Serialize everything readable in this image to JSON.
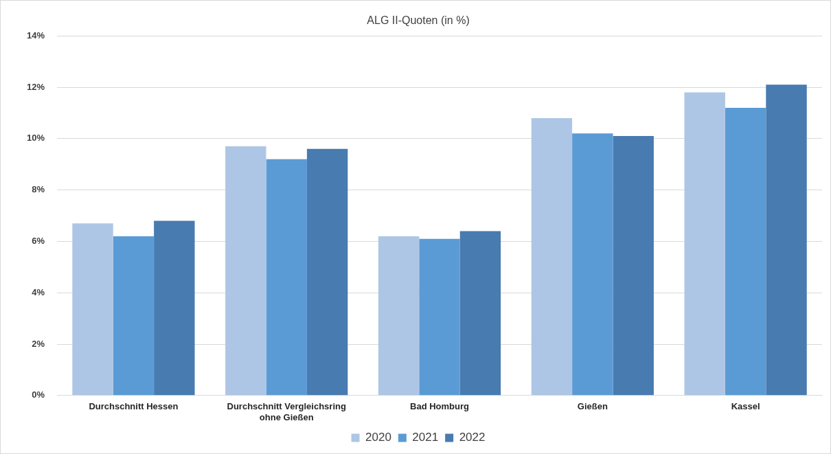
{
  "chart_data": {
    "type": "bar",
    "title": "ALG II-Quoten (in %)",
    "categories": [
      "Durchschnitt Hessen",
      "Durchschnitt Vergleichsring ohne Gießen",
      "Bad Homburg",
      "Gießen",
      "Kassel"
    ],
    "series": [
      {
        "name": "2020",
        "color": "#aec6e5",
        "values": [
          6.7,
          9.7,
          6.2,
          10.8,
          11.8
        ]
      },
      {
        "name": "2021",
        "color": "#5b9bd5",
        "values": [
          6.2,
          9.2,
          6.1,
          10.2,
          11.2
        ]
      },
      {
        "name": "2022",
        "color": "#487bb0",
        "values": [
          6.8,
          9.6,
          6.4,
          10.1,
          12.1
        ]
      }
    ],
    "ylim": [
      0,
      14
    ],
    "yticks": [
      {
        "value": 0,
        "label": "0%"
      },
      {
        "value": 2,
        "label": "2%"
      },
      {
        "value": 4,
        "label": "4%"
      },
      {
        "value": 6,
        "label": "6%"
      },
      {
        "value": 8,
        "label": "8%"
      },
      {
        "value": 10,
        "label": "10%"
      },
      {
        "value": 12,
        "label": "12%"
      },
      {
        "value": 14,
        "label": "14%"
      }
    ],
    "grid": "y",
    "legend": "bottom"
  }
}
